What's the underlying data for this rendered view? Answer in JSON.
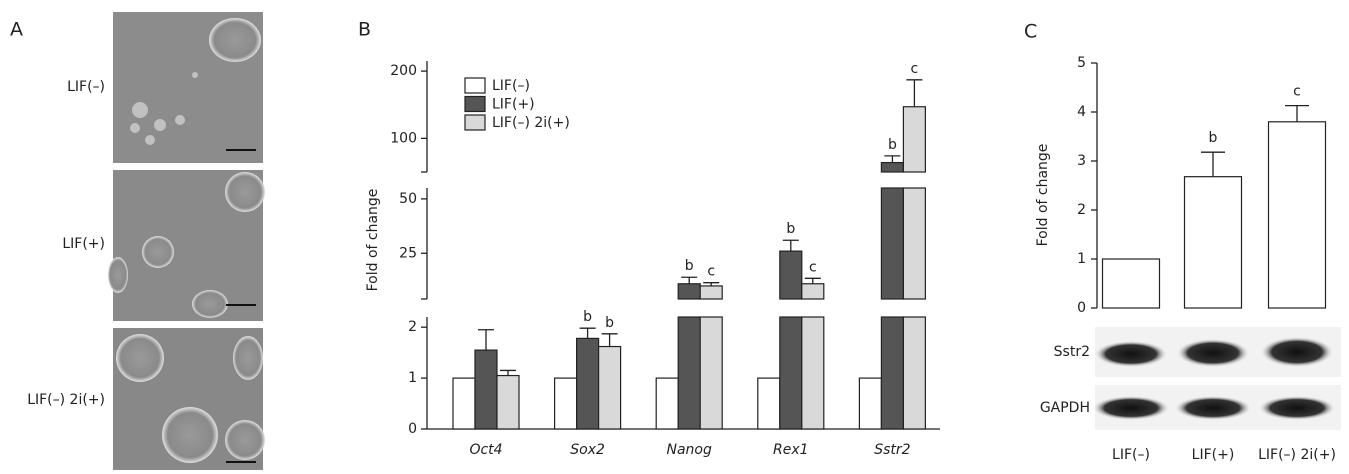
{
  "panel_a": {
    "label": "A",
    "conditions": [
      "LIF(–)",
      "LIF(+)",
      "LIF(–) 2i(+)"
    ]
  },
  "chart_data": [
    {
      "type": "broken-bar",
      "panel_label": "B",
      "y_label": "Fold of change",
      "categories": [
        "Oct4",
        "Sox2",
        "Nanog",
        "Rex1",
        "Sstr2"
      ],
      "series": [
        {
          "name": "LIF(–)",
          "color": "#ffffff",
          "values": [
            1,
            1,
            1,
            1,
            1
          ],
          "errors": [
            null,
            null,
            null,
            null,
            null
          ],
          "annotations": [
            null,
            null,
            null,
            null,
            null
          ]
        },
        {
          "name": "LIF(+)",
          "color": "#555555",
          "values": [
            1.55,
            1.78,
            11,
            26,
            64
          ],
          "errors": [
            0.4,
            0.2,
            3,
            5,
            10
          ],
          "annotations": [
            null,
            "b",
            "b",
            "b",
            "b"
          ]
        },
        {
          "name": "LIF(–) 2i(+)",
          "color": "#d9d9d9",
          "values": [
            1.05,
            1.62,
            10,
            11,
            147
          ],
          "errors": [
            0.1,
            0.25,
            1.5,
            2.5,
            40
          ],
          "annotations": [
            null,
            "b",
            "c",
            "c",
            "c"
          ]
        }
      ],
      "y_segments": [
        {
          "ylim": [
            0,
            2.2
          ],
          "yticks": [
            0,
            1,
            2
          ]
        },
        {
          "ylim": [
            4,
            55
          ],
          "yticks": [
            25,
            50
          ]
        },
        {
          "ylim": [
            50,
            215
          ],
          "yticks": [
            100,
            200
          ]
        }
      ]
    },
    {
      "type": "bar",
      "panel_label": "C",
      "y_label": "Fold of change",
      "categories": [
        "LIF(–)",
        "LIF(+)",
        "LIF(–) 2i(+)"
      ],
      "values": [
        1,
        2.68,
        3.8
      ],
      "errors": [
        null,
        0.5,
        0.33
      ],
      "annotations": [
        null,
        "b",
        "c"
      ],
      "color": "#ffffff",
      "ylim": [
        0,
        5
      ],
      "yticks": [
        0,
        1,
        2,
        3,
        4,
        5
      ],
      "blot_rows": [
        "Sstr2",
        "GAPDH"
      ]
    }
  ]
}
